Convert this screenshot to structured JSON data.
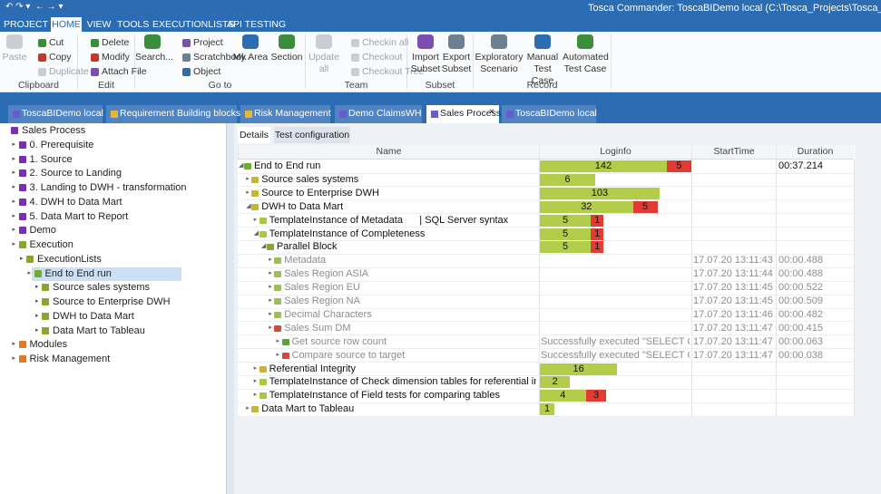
{
  "window_title": "Tosca Commander: ToscaBIDemo local (C:\\Tosca_Projects\\Tosca_Workspaces\\To",
  "menu": {
    "items": [
      "PROJECT",
      "HOME",
      "VIEW",
      "TOOLS",
      "EXECUTIONLISTS",
      "API TESTING"
    ],
    "active": 1
  },
  "ribbon": {
    "groups": [
      {
        "label": "Clipboard",
        "buttons": [
          {
            "label": "Paste",
            "disabled": true
          },
          {
            "label": "Cut"
          },
          {
            "label": "Copy"
          },
          {
            "label": "Duplicate",
            "disabled": true
          }
        ]
      },
      {
        "label": "Edit",
        "buttons": [
          {
            "label": "Delete"
          },
          {
            "label": "Modify"
          },
          {
            "label": "Attach File"
          }
        ]
      },
      {
        "label": "Go to",
        "buttons": [
          {
            "label": "Search..."
          },
          {
            "label": "Project"
          },
          {
            "label": "Scratchbook"
          },
          {
            "label": "Object"
          },
          {
            "label": "My Area"
          },
          {
            "label": "Section"
          }
        ]
      },
      {
        "label": "Team",
        "buttons": [
          {
            "label": "Update all",
            "disabled": true
          },
          {
            "label": "Checkin all",
            "disabled": true
          },
          {
            "label": "Checkout",
            "disabled": true
          },
          {
            "label": "Checkout Tree",
            "disabled": true
          }
        ]
      },
      {
        "label": "Subset",
        "buttons": [
          {
            "label": "Import Subset"
          },
          {
            "label": "Export Subset"
          }
        ]
      },
      {
        "label": "Record",
        "buttons": [
          {
            "label": "Exploratory Scenario"
          },
          {
            "label": "Manual Test Case"
          },
          {
            "label": "Automated Test Case"
          }
        ]
      }
    ]
  },
  "tabs": {
    "items": [
      "ToscaBIDemo local",
      "Requirement Building blocks",
      "Risk Management",
      "Demo ClaimsWH",
      "Sales Process",
      "ToscaBIDemo local"
    ],
    "active": 4
  },
  "tree": [
    {
      "label": "Sales Process",
      "level": 0,
      "icon": "purple"
    },
    {
      "label": "0. Prerequisite",
      "level": 1,
      "icon": "purple"
    },
    {
      "label": "1. Source",
      "level": 1,
      "icon": "purple"
    },
    {
      "label": "2. Source to Landing",
      "level": 1,
      "icon": "purple"
    },
    {
      "label": "3. Landing to DWH - transformation",
      "level": 1,
      "icon": "purple"
    },
    {
      "label": "4. DWH to Data Mart",
      "level": 1,
      "icon": "purple"
    },
    {
      "label": "5. Data Mart to Report",
      "level": 1,
      "icon": "purple"
    },
    {
      "label": "Demo",
      "level": 1,
      "icon": "purple"
    },
    {
      "label": "Execution",
      "level": 1,
      "icon": "green"
    },
    {
      "label": "ExecutionLists",
      "level": 2,
      "icon": "green"
    },
    {
      "label": "End to End run",
      "level": 3,
      "icon": "run",
      "selected": true
    },
    {
      "label": "Source sales systems",
      "level": 4,
      "icon": "green"
    },
    {
      "label": "Source to Enterprise DWH",
      "level": 4,
      "icon": "green"
    },
    {
      "label": "DWH to Data Mart",
      "level": 4,
      "icon": "green"
    },
    {
      "label": "Data Mart to Tableau",
      "level": 4,
      "icon": "green"
    },
    {
      "label": "Modules",
      "level": 1,
      "icon": "orange"
    },
    {
      "label": "Risk Management",
      "level": 1,
      "icon": "orange"
    }
  ],
  "detail_tabs": {
    "items": [
      "Details",
      "Test configuration"
    ],
    "active": 0
  },
  "table": {
    "columns": [
      "Name",
      "Loginfo",
      "StartTime",
      "Duration"
    ],
    "rows": [
      {
        "name": "End to End run",
        "level": 0,
        "icon": "run",
        "passed": 142,
        "failed": 5,
        "duration": "00:37.214"
      },
      {
        "name": "Source sales systems",
        "level": 1,
        "icon": "folder",
        "passed": 6
      },
      {
        "name": "Source to Enterprise DWH",
        "level": 1,
        "icon": "folder",
        "passed": 103
      },
      {
        "name": "DWH to Data Mart",
        "level": 1,
        "icon": "folder",
        "passed": 32,
        "failed": 5
      },
      {
        "name": "TemplateInstance of Metadata      | SQL Server syntax",
        "level": 2,
        "icon": "instance",
        "passed": 5,
        "failed": 1
      },
      {
        "name": "TemplateInstance of Completeness",
        "level": 2,
        "icon": "instance",
        "passed": 5,
        "failed": 1
      },
      {
        "name": "Parallel Block",
        "level": 3,
        "icon": "parallel",
        "passed": 5,
        "failed": 1
      },
      {
        "name": "Metadata",
        "level": 4,
        "icon": "case",
        "dim": true,
        "start": "17.07.20 13:11:43",
        "duration": "00:00.488"
      },
      {
        "name": "Sales Region ASIA",
        "level": 4,
        "icon": "case",
        "dim": true,
        "start": "17.07.20 13:11:44",
        "duration": "00:00.488"
      },
      {
        "name": "Sales Region EU",
        "level": 4,
        "icon": "case",
        "dim": true,
        "start": "17.07.20 13:11:45",
        "duration": "00:00.522"
      },
      {
        "name": "Sales Region NA",
        "level": 4,
        "icon": "case",
        "dim": true,
        "start": "17.07.20 13:11:45",
        "duration": "00:00.509"
      },
      {
        "name": "Decimal Characters",
        "level": 4,
        "icon": "case",
        "dim": true,
        "start": "17.07.20 13:11:46",
        "duration": "00:00.482"
      },
      {
        "name": "Sales Sum DM",
        "level": 4,
        "icon": "casefail",
        "dim": true,
        "start": "17.07.20 13:11:47",
        "duration": "00:00.415"
      },
      {
        "name": "Get source row count",
        "level": 5,
        "icon": "step",
        "dim": true,
        "log": "Successfully executed \"SELECT CO...",
        "start": "17.07.20 13:11:47",
        "duration": "00:00.063"
      },
      {
        "name": "Compare source to target",
        "level": 5,
        "icon": "stepfail",
        "dim": true,
        "log": "Successfully executed \"SELECT CO...",
        "start": "17.07.20 13:11:47",
        "duration": "00:00.038"
      },
      {
        "name": "Referential Integrity",
        "level": 2,
        "icon": "folder",
        "passed": 16
      },
      {
        "name": "TemplateInstance of Check dimension tables for referential int...",
        "level": 2,
        "icon": "instance",
        "passed": 2
      },
      {
        "name": "TemplateInstance of Field tests for comparing tables",
        "level": 2,
        "icon": "instance",
        "passed": 4,
        "failed": 3
      },
      {
        "name": "Data Mart to Tableau",
        "level": 1,
        "icon": "folder",
        "passed": 1
      }
    ]
  }
}
